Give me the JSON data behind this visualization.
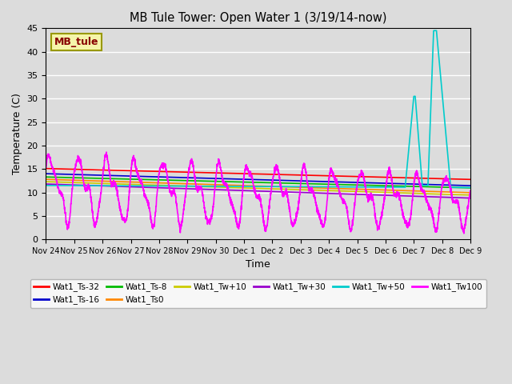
{
  "title": "MB Tule Tower: Open Water 1 (3/19/14-now)",
  "xlabel": "Time",
  "ylabel": "Temperature (C)",
  "ylim": [
    0,
    45
  ],
  "background_color": "#dcdcdc",
  "legend_box_color": "#f5f5aa",
  "legend_box_edge": "#999900",
  "legend_box_text": "#880000",
  "legend_box_label": "MB_tule",
  "x_tick_labels": [
    "Nov 24",
    "Nov 25",
    "Nov 26",
    "Nov 27",
    "Nov 28",
    "Nov 29",
    "Nov 30",
    "Dec 1",
    "Dec 2",
    "Dec 3",
    "Dec 4",
    "Dec 5",
    "Dec 6",
    "Dec 7",
    "Dec 8",
    "Dec 9"
  ],
  "series": [
    {
      "label": "Wat1_Ts-32",
      "color": "#ff0000"
    },
    {
      "label": "Wat1_Ts-16",
      "color": "#0000cc"
    },
    {
      "label": "Wat1_Ts-8",
      "color": "#00bb00"
    },
    {
      "label": "Wat1_Ts0",
      "color": "#ff8800"
    },
    {
      "label": "Wat1_Tw+10",
      "color": "#cccc00"
    },
    {
      "label": "Wat1_Tw+30",
      "color": "#9900cc"
    },
    {
      "label": "Wat1_Tw+50",
      "color": "#00cccc"
    },
    {
      "label": "Wat1_Tw100",
      "color": "#ff00ff"
    }
  ]
}
